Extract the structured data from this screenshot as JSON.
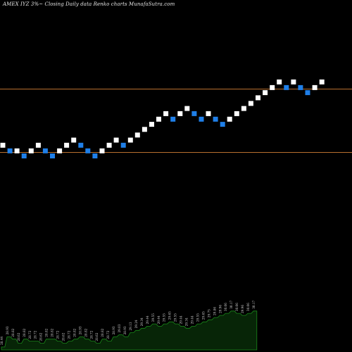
{
  "header": {
    "title": "AMEX  IYZ 3%~  Closing Daily data  Renko  charts MunafaSutra.com"
  },
  "chart_data": {
    "type": "renko",
    "title": "AMEX  IYZ 3%~  Closing Daily data  Renko  charts MunafaSutra.com",
    "reference_lines": [
      30.02,
      28.72
    ],
    "bricks": [
      {
        "top": 28.93,
        "dir": "up"
      },
      {
        "top": 28.82,
        "dir": "down"
      },
      {
        "top": 28.82,
        "dir": "up"
      },
      {
        "top": 28.72,
        "dir": "down"
      },
      {
        "top": 28.82,
        "dir": "up"
      },
      {
        "top": 28.93,
        "dir": "up"
      },
      {
        "top": 28.82,
        "dir": "down"
      },
      {
        "top": 28.72,
        "dir": "down"
      },
      {
        "top": 28.82,
        "dir": "up"
      },
      {
        "top": 28.93,
        "dir": "up"
      },
      {
        "top": 29.03,
        "dir": "up"
      },
      {
        "top": 28.93,
        "dir": "down"
      },
      {
        "top": 28.82,
        "dir": "down"
      },
      {
        "top": 28.72,
        "dir": "down"
      },
      {
        "top": 28.82,
        "dir": "up"
      },
      {
        "top": 28.93,
        "dir": "up"
      },
      {
        "top": 29.03,
        "dir": "up"
      },
      {
        "top": 28.93,
        "dir": "down"
      },
      {
        "top": 29.03,
        "dir": "up"
      },
      {
        "top": 29.13,
        "dir": "up"
      },
      {
        "top": 29.24,
        "dir": "up"
      },
      {
        "top": 29.34,
        "dir": "up"
      },
      {
        "top": 29.44,
        "dir": "up"
      },
      {
        "top": 29.55,
        "dir": "up"
      },
      {
        "top": 29.44,
        "dir": "down"
      },
      {
        "top": 29.55,
        "dir": "up"
      },
      {
        "top": 29.65,
        "dir": "up"
      },
      {
        "top": 29.55,
        "dir": "down"
      },
      {
        "top": 29.44,
        "dir": "down"
      },
      {
        "top": 29.55,
        "dir": "up"
      },
      {
        "top": 29.44,
        "dir": "down"
      },
      {
        "top": 29.34,
        "dir": "down"
      },
      {
        "top": 29.44,
        "dir": "up"
      },
      {
        "top": 29.55,
        "dir": "up"
      },
      {
        "top": 29.65,
        "dir": "up"
      },
      {
        "top": 29.75,
        "dir": "up"
      },
      {
        "top": 29.86,
        "dir": "up"
      },
      {
        "top": 29.96,
        "dir": "up"
      },
      {
        "top": 30.06,
        "dir": "up"
      },
      {
        "top": 30.17,
        "dir": "up"
      },
      {
        "top": 30.06,
        "dir": "down"
      },
      {
        "top": 30.17,
        "dir": "up"
      },
      {
        "top": 30.06,
        "dir": "down"
      },
      {
        "top": 29.96,
        "dir": "down"
      },
      {
        "top": 30.06,
        "dir": "up"
      },
      {
        "top": 30.17,
        "dir": "up"
      }
    ],
    "volume_labels": [
      "28.44",
      "28.93",
      "28.82",
      "28.62",
      "28.82",
      "28.72",
      "28.72",
      "28.62",
      "28.82",
      "28.82",
      "28.72",
      "28.62",
      "28.72",
      "28.82",
      "28.93",
      "28.82",
      "28.72",
      "28.62",
      "28.82",
      "28.72",
      "28.93",
      "29.03",
      "28.93",
      "29.13",
      "29.24",
      "29.34",
      "29.44",
      "29.55",
      "29.44",
      "29.55",
      "29.65",
      "29.55",
      "29.44",
      "29.34",
      "29.44",
      "29.55",
      "29.65",
      "29.75",
      "29.86",
      "29.96",
      "30.06",
      "30.17",
      "30.06",
      "29.96",
      "30.06",
      "30.17"
    ],
    "colors": {
      "up": "#ffffff",
      "down": "#1f7fe8",
      "reference_line": "#b8702e",
      "volume_fill": "#072507",
      "volume_stroke": "#1a8a1a",
      "label": "#cfcfcf"
    }
  }
}
